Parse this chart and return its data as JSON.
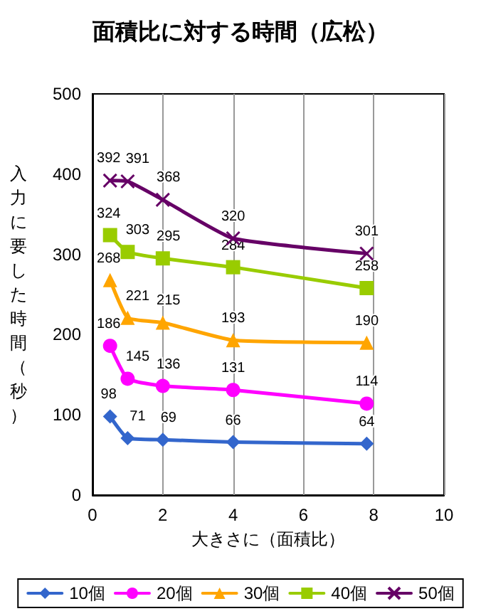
{
  "chart_data": {
    "type": "line",
    "title": "面積比に対する時間（広松）",
    "xlabel": "大きさに（面積比）",
    "ylabel": "入力に要した時間（秒）",
    "x": [
      0.5,
      1,
      2,
      4,
      7.8
    ],
    "series": [
      {
        "name": "10個",
        "color": "#3366cc",
        "marker": "diamond",
        "values": [
          98,
          71,
          69,
          66,
          64
        ]
      },
      {
        "name": "20個",
        "color": "#ff00ff",
        "marker": "circle",
        "values": [
          186,
          145,
          136,
          131,
          114
        ]
      },
      {
        "name": "30個",
        "color": "#ffa500",
        "marker": "triangle",
        "values": [
          268,
          221,
          215,
          193,
          190
        ]
      },
      {
        "name": "40個",
        "color": "#99cc00",
        "marker": "square",
        "values": [
          324,
          303,
          295,
          284,
          258
        ]
      },
      {
        "name": "50個",
        "color": "#660066",
        "marker": "cross",
        "values": [
          392,
          391,
          368,
          320,
          301
        ]
      }
    ],
    "xlim": [
      0,
      10
    ],
    "xticks": [
      0,
      2,
      4,
      6,
      8,
      10
    ],
    "ylim": [
      0,
      500
    ],
    "yticks": [
      0,
      100,
      200,
      300,
      400,
      500
    ],
    "grid": "x",
    "legend": "bottom",
    "data_labels": true
  }
}
